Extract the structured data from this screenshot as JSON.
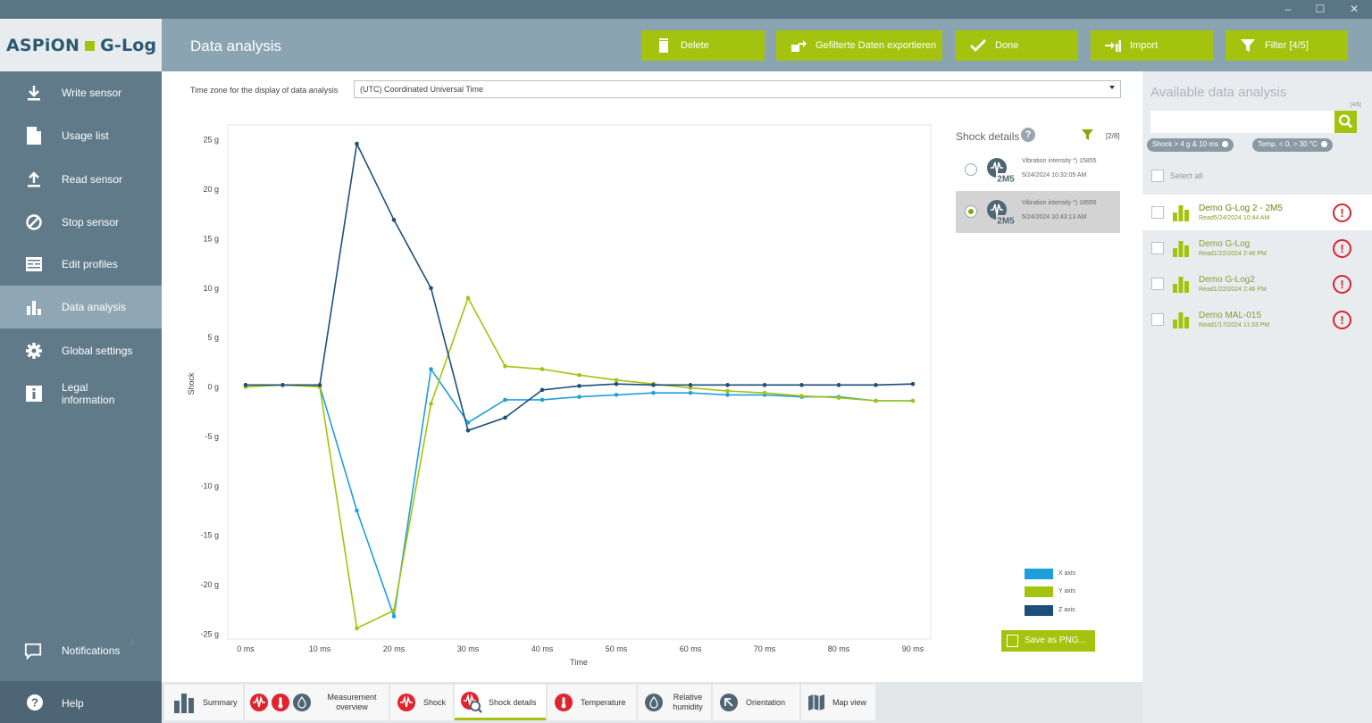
{
  "window": {
    "minimize": "–",
    "maximize": "☐",
    "close": "✕"
  },
  "app": {
    "logo_left": "ASPiON",
    "logo_right": "G-Log"
  },
  "sidebar": {
    "items": [
      {
        "label": "Write sensor",
        "icon": "download-icon"
      },
      {
        "label": "Usage list",
        "icon": "document-icon"
      },
      {
        "label": "Read sensor",
        "icon": "upload-icon"
      },
      {
        "label": "Stop sensor",
        "icon": "stop-icon"
      },
      {
        "label": "Edit profiles",
        "icon": "profiles-icon"
      },
      {
        "label": "Data analysis",
        "icon": "bar-chart-icon",
        "active": true
      },
      {
        "label": "Global settings",
        "icon": "gear-icon"
      },
      {
        "label": "Legal information",
        "icon": "info-icon"
      }
    ],
    "notifications": {
      "label": "Notifications",
      "count": "0"
    },
    "help": {
      "label": "Help"
    }
  },
  "header": {
    "title": "Data analysis",
    "buttons": {
      "delete": "Delete",
      "export": "Gefilterte Daten exportieren",
      "done": "Done",
      "import": "Import",
      "filter": "Filter [4/5]"
    }
  },
  "timezone": {
    "label": "Time zone for the display of data analysis",
    "value": "(UTC) Coordinated Universal Time"
  },
  "shock_details": {
    "title": "Shock details",
    "help": "?",
    "count": "[2/8]",
    "items": [
      {
        "name": "Vibration intensity *) 15855",
        "time": "5/24/2024 10:32:05 AM",
        "selected": false
      },
      {
        "name": "Vibration intensity *) 18556",
        "time": "5/24/2024 10:43:13 AM",
        "selected": true
      }
    ]
  },
  "legend": {
    "x": "X axis",
    "y": "Y axis",
    "z": "Z axis"
  },
  "save_png": "Save as PNG...",
  "colors": {
    "x": "#1e9fdc",
    "y": "#a4c30e",
    "z": "#1c4f7c",
    "accent": "#a4c30e",
    "alert": "#d9232e"
  },
  "tabs": [
    {
      "label": "Summary"
    },
    {
      "label": "Measurement overview"
    },
    {
      "label": "Shock"
    },
    {
      "label": "Shock details",
      "active": true
    },
    {
      "label": "Temperature"
    },
    {
      "label": "Relative humidity"
    },
    {
      "label": "Orientation"
    },
    {
      "label": "Map view"
    }
  ],
  "right": {
    "title": "Available data analysis",
    "count": "[4/5]",
    "chips": [
      "Shock > 4 g & 10 ms",
      "Temp. < 0, > 30 °C"
    ],
    "select_all": "Select all",
    "items": [
      {
        "name": "Demo G-Log 2 - 2M5",
        "sub": "Read5/24/2024 10:44 AM",
        "selected": true
      },
      {
        "name": "Demo G-Log",
        "sub": "Read1/22/2024 2:46 PM",
        "selected": false
      },
      {
        "name": "Demo G-Log2",
        "sub": "Read1/22/2024 2:46 PM",
        "selected": false
      },
      {
        "name": "Demo MAL-015",
        "sub": "Read1/17/2024 11:33 PM",
        "selected": false
      }
    ],
    "alert_glyph": "!"
  },
  "chart_data": {
    "type": "line",
    "title": "",
    "xlabel": "Time",
    "ylabel": "Shock",
    "x": [
      0,
      5,
      10,
      15,
      20,
      25,
      30,
      35,
      40,
      45,
      50,
      55,
      60,
      65,
      70,
      75,
      80,
      85,
      90
    ],
    "xticks": [
      0,
      10,
      20,
      30,
      40,
      50,
      60,
      70,
      80,
      90
    ],
    "xtick_labels": [
      "0 ms",
      "10 ms",
      "20 ms",
      "30 ms",
      "40 ms",
      "50 ms",
      "60 ms",
      "70 ms",
      "80 ms",
      "90 ms"
    ],
    "yticks": [
      25,
      20,
      15,
      10,
      5,
      0,
      -5,
      -10,
      -15,
      -20,
      -25
    ],
    "ytick_labels": [
      "25 g",
      "20 g",
      "15 g",
      "10 g",
      "5 g",
      "0 g",
      "-5 g",
      "-10 g",
      "-15 g",
      "-20 g",
      "-25 g"
    ],
    "xlim": [
      0,
      90
    ],
    "ylim": [
      -25.5,
      26.5
    ],
    "grid": false,
    "legend_position": "bottom-right",
    "series": [
      {
        "name": "X axis",
        "color": "#1e9fdc",
        "values": [
          0.2,
          0.2,
          0.1,
          -12.5,
          -23.2,
          1.8,
          -3.6,
          -1.3,
          -1.3,
          -1.0,
          -0.8,
          -0.6,
          -0.6,
          -0.8,
          -0.8,
          -1.0,
          -1.0,
          -1.4,
          -1.4
        ]
      },
      {
        "name": "Y axis",
        "color": "#a4c30e",
        "values": [
          0.0,
          0.2,
          0.0,
          -24.4,
          -22.6,
          -1.7,
          9.0,
          2.1,
          1.8,
          1.2,
          0.7,
          0.3,
          -0.1,
          -0.4,
          -0.6,
          -0.9,
          -1.1,
          -1.4,
          -1.4
        ]
      },
      {
        "name": "Z axis",
        "color": "#1c4f7c",
        "values": [
          0.2,
          0.2,
          0.2,
          24.6,
          16.9,
          10.0,
          -4.4,
          -3.1,
          -0.3,
          0.1,
          0.3,
          0.2,
          0.2,
          0.2,
          0.2,
          0.2,
          0.2,
          0.2,
          0.3
        ]
      }
    ]
  }
}
